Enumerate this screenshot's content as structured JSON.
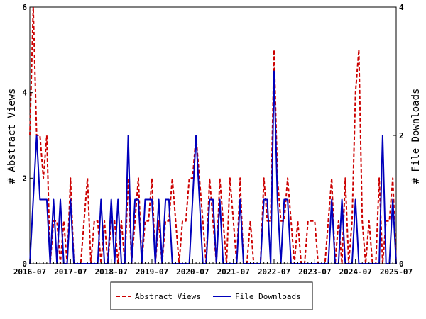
{
  "chart_data": {
    "type": "line",
    "title": "",
    "ylabel_left": "# Abstract Views",
    "ylabel_right": "# File Downloads",
    "ylim_left": [
      0,
      6
    ],
    "ylim_right": [
      0,
      4
    ],
    "yticks_left": [
      0,
      2,
      4,
      6
    ],
    "yticks_right": [
      0,
      2,
      4
    ],
    "xlim": [
      "2016-07",
      "2025-07"
    ],
    "xtick_labels": [
      "2016-07",
      "2017-07",
      "2018-07",
      "2019-07",
      "2020-07",
      "2021-07",
      "2022-07",
      "2023-07",
      "2024-07",
      "2025-07"
    ],
    "legend_position": "bottom-center",
    "grid": false,
    "colors": {
      "abstract_views": "#cc0000",
      "file_downloads": "#0000bb"
    },
    "series": [
      {
        "name": "Abstract Views",
        "axis": "left",
        "style": "dashed",
        "color": "#cc0000",
        "x": [
          "2016-07",
          "2016-08",
          "2016-09",
          "2016-10",
          "2016-11",
          "2016-12",
          "2017-01",
          "2017-02",
          "2017-03",
          "2017-04",
          "2017-05",
          "2017-06",
          "2017-07",
          "2017-08",
          "2017-09",
          "2017-10",
          "2017-11",
          "2017-12",
          "2018-01",
          "2018-02",
          "2018-03",
          "2018-04",
          "2018-05",
          "2018-06",
          "2018-07",
          "2018-08",
          "2018-09",
          "2018-10",
          "2018-11",
          "2018-12",
          "2019-01",
          "2019-02",
          "2019-03",
          "2019-04",
          "2019-05",
          "2019-06",
          "2019-07",
          "2019-08",
          "2019-09",
          "2019-10",
          "2019-11",
          "2019-12",
          "2020-01",
          "2020-02",
          "2020-03",
          "2020-04",
          "2020-05",
          "2020-06",
          "2020-07",
          "2020-08",
          "2020-09",
          "2020-10",
          "2020-11",
          "2020-12",
          "2021-01",
          "2021-02",
          "2021-03",
          "2021-04",
          "2021-05",
          "2021-06",
          "2021-07",
          "2021-08",
          "2021-09",
          "2021-10",
          "2021-11",
          "2021-12",
          "2022-01",
          "2022-02",
          "2022-03",
          "2022-04",
          "2022-05",
          "2022-06",
          "2022-07",
          "2022-08",
          "2022-09",
          "2022-10",
          "2022-11",
          "2022-12",
          "2023-01",
          "2023-02",
          "2023-03",
          "2023-04",
          "2023-05",
          "2023-06",
          "2023-07",
          "2023-08",
          "2023-09",
          "2023-10",
          "2023-11",
          "2023-12",
          "2024-01",
          "2024-02",
          "2024-03",
          "2024-04",
          "2024-05",
          "2024-06",
          "2024-07",
          "2024-08",
          "2024-09",
          "2024-10",
          "2024-11",
          "2024-12",
          "2025-01",
          "2025-02",
          "2025-03",
          "2025-04",
          "2025-05",
          "2025-06",
          "2025-07"
        ],
        "y": [
          3,
          6,
          3,
          3,
          2,
          3,
          0,
          1,
          1,
          0,
          1,
          0,
          2,
          0,
          0,
          0,
          1,
          2,
          0,
          1,
          1,
          0,
          1,
          0,
          1,
          1,
          0,
          1,
          0,
          2,
          0,
          1,
          2,
          0,
          1,
          1,
          2,
          0,
          1,
          0,
          1,
          1,
          2,
          1,
          0,
          1,
          1,
          2,
          2,
          3,
          2,
          1,
          0,
          2,
          1,
          0,
          2,
          1,
          0,
          2,
          1,
          0,
          2,
          0,
          0,
          1,
          0,
          0,
          0,
          2,
          1,
          1,
          5,
          2,
          1,
          1,
          2,
          1,
          0,
          1,
          0,
          0,
          1,
          1,
          1,
          0,
          0,
          0,
          1,
          2,
          0,
          1,
          0,
          2,
          0,
          1,
          4,
          5,
          1,
          0,
          1,
          0,
          0,
          2,
          0,
          1,
          1,
          2,
          0
        ]
      },
      {
        "name": "File Downloads",
        "axis": "right",
        "style": "solid",
        "color": "#0000bb",
        "x": [
          "2016-07",
          "2016-08",
          "2016-09",
          "2016-10",
          "2016-11",
          "2016-12",
          "2017-01",
          "2017-02",
          "2017-03",
          "2017-04",
          "2017-05",
          "2017-06",
          "2017-07",
          "2017-08",
          "2017-09",
          "2017-10",
          "2017-11",
          "2017-12",
          "2018-01",
          "2018-02",
          "2018-03",
          "2018-04",
          "2018-05",
          "2018-06",
          "2018-07",
          "2018-08",
          "2018-09",
          "2018-10",
          "2018-11",
          "2018-12",
          "2019-01",
          "2019-02",
          "2019-03",
          "2019-04",
          "2019-05",
          "2019-06",
          "2019-07",
          "2019-08",
          "2019-09",
          "2019-10",
          "2019-11",
          "2019-12",
          "2020-01",
          "2020-02",
          "2020-03",
          "2020-04",
          "2020-05",
          "2020-06",
          "2020-07",
          "2020-08",
          "2020-09",
          "2020-10",
          "2020-11",
          "2020-12",
          "2021-01",
          "2021-02",
          "2021-03",
          "2021-04",
          "2021-05",
          "2021-06",
          "2021-07",
          "2021-08",
          "2021-09",
          "2021-10",
          "2021-11",
          "2021-12",
          "2022-01",
          "2022-02",
          "2022-03",
          "2022-04",
          "2022-05",
          "2022-06",
          "2022-07",
          "2022-08",
          "2022-09",
          "2022-10",
          "2022-11",
          "2022-12",
          "2023-01",
          "2023-02",
          "2023-03",
          "2023-04",
          "2023-05",
          "2023-06",
          "2023-07",
          "2023-08",
          "2023-09",
          "2023-10",
          "2023-11",
          "2023-12",
          "2024-01",
          "2024-02",
          "2024-03",
          "2024-04",
          "2024-05",
          "2024-06",
          "2024-07",
          "2024-08",
          "2024-09",
          "2024-10",
          "2024-11",
          "2024-12",
          "2025-01",
          "2025-02",
          "2025-03",
          "2025-04",
          "2025-05",
          "2025-06",
          "2025-07"
        ],
        "y": [
          0,
          1,
          2,
          1,
          1,
          1,
          0,
          1,
          0,
          1,
          0,
          0,
          1,
          0,
          0,
          0,
          0,
          0,
          0,
          0,
          0,
          1,
          0,
          0,
          1,
          0,
          1,
          0,
          0,
          2,
          0,
          1,
          1,
          0,
          1,
          1,
          1,
          0,
          1,
          0,
          1,
          1,
          0,
          0,
          0,
          0,
          0,
          0,
          1,
          2,
          1,
          0,
          0,
          1,
          1,
          0,
          1,
          0,
          0,
          0,
          0,
          0,
          1,
          0,
          0,
          0,
          0,
          0,
          0,
          1,
          1,
          0,
          3,
          1,
          0,
          1,
          1,
          0,
          0,
          0,
          0,
          0,
          0,
          0,
          0,
          0,
          0,
          0,
          0,
          1,
          0,
          0,
          1,
          0,
          0,
          0,
          1,
          0,
          0,
          0,
          0,
          0,
          0,
          0,
          2,
          0,
          0,
          1,
          0
        ]
      }
    ]
  }
}
